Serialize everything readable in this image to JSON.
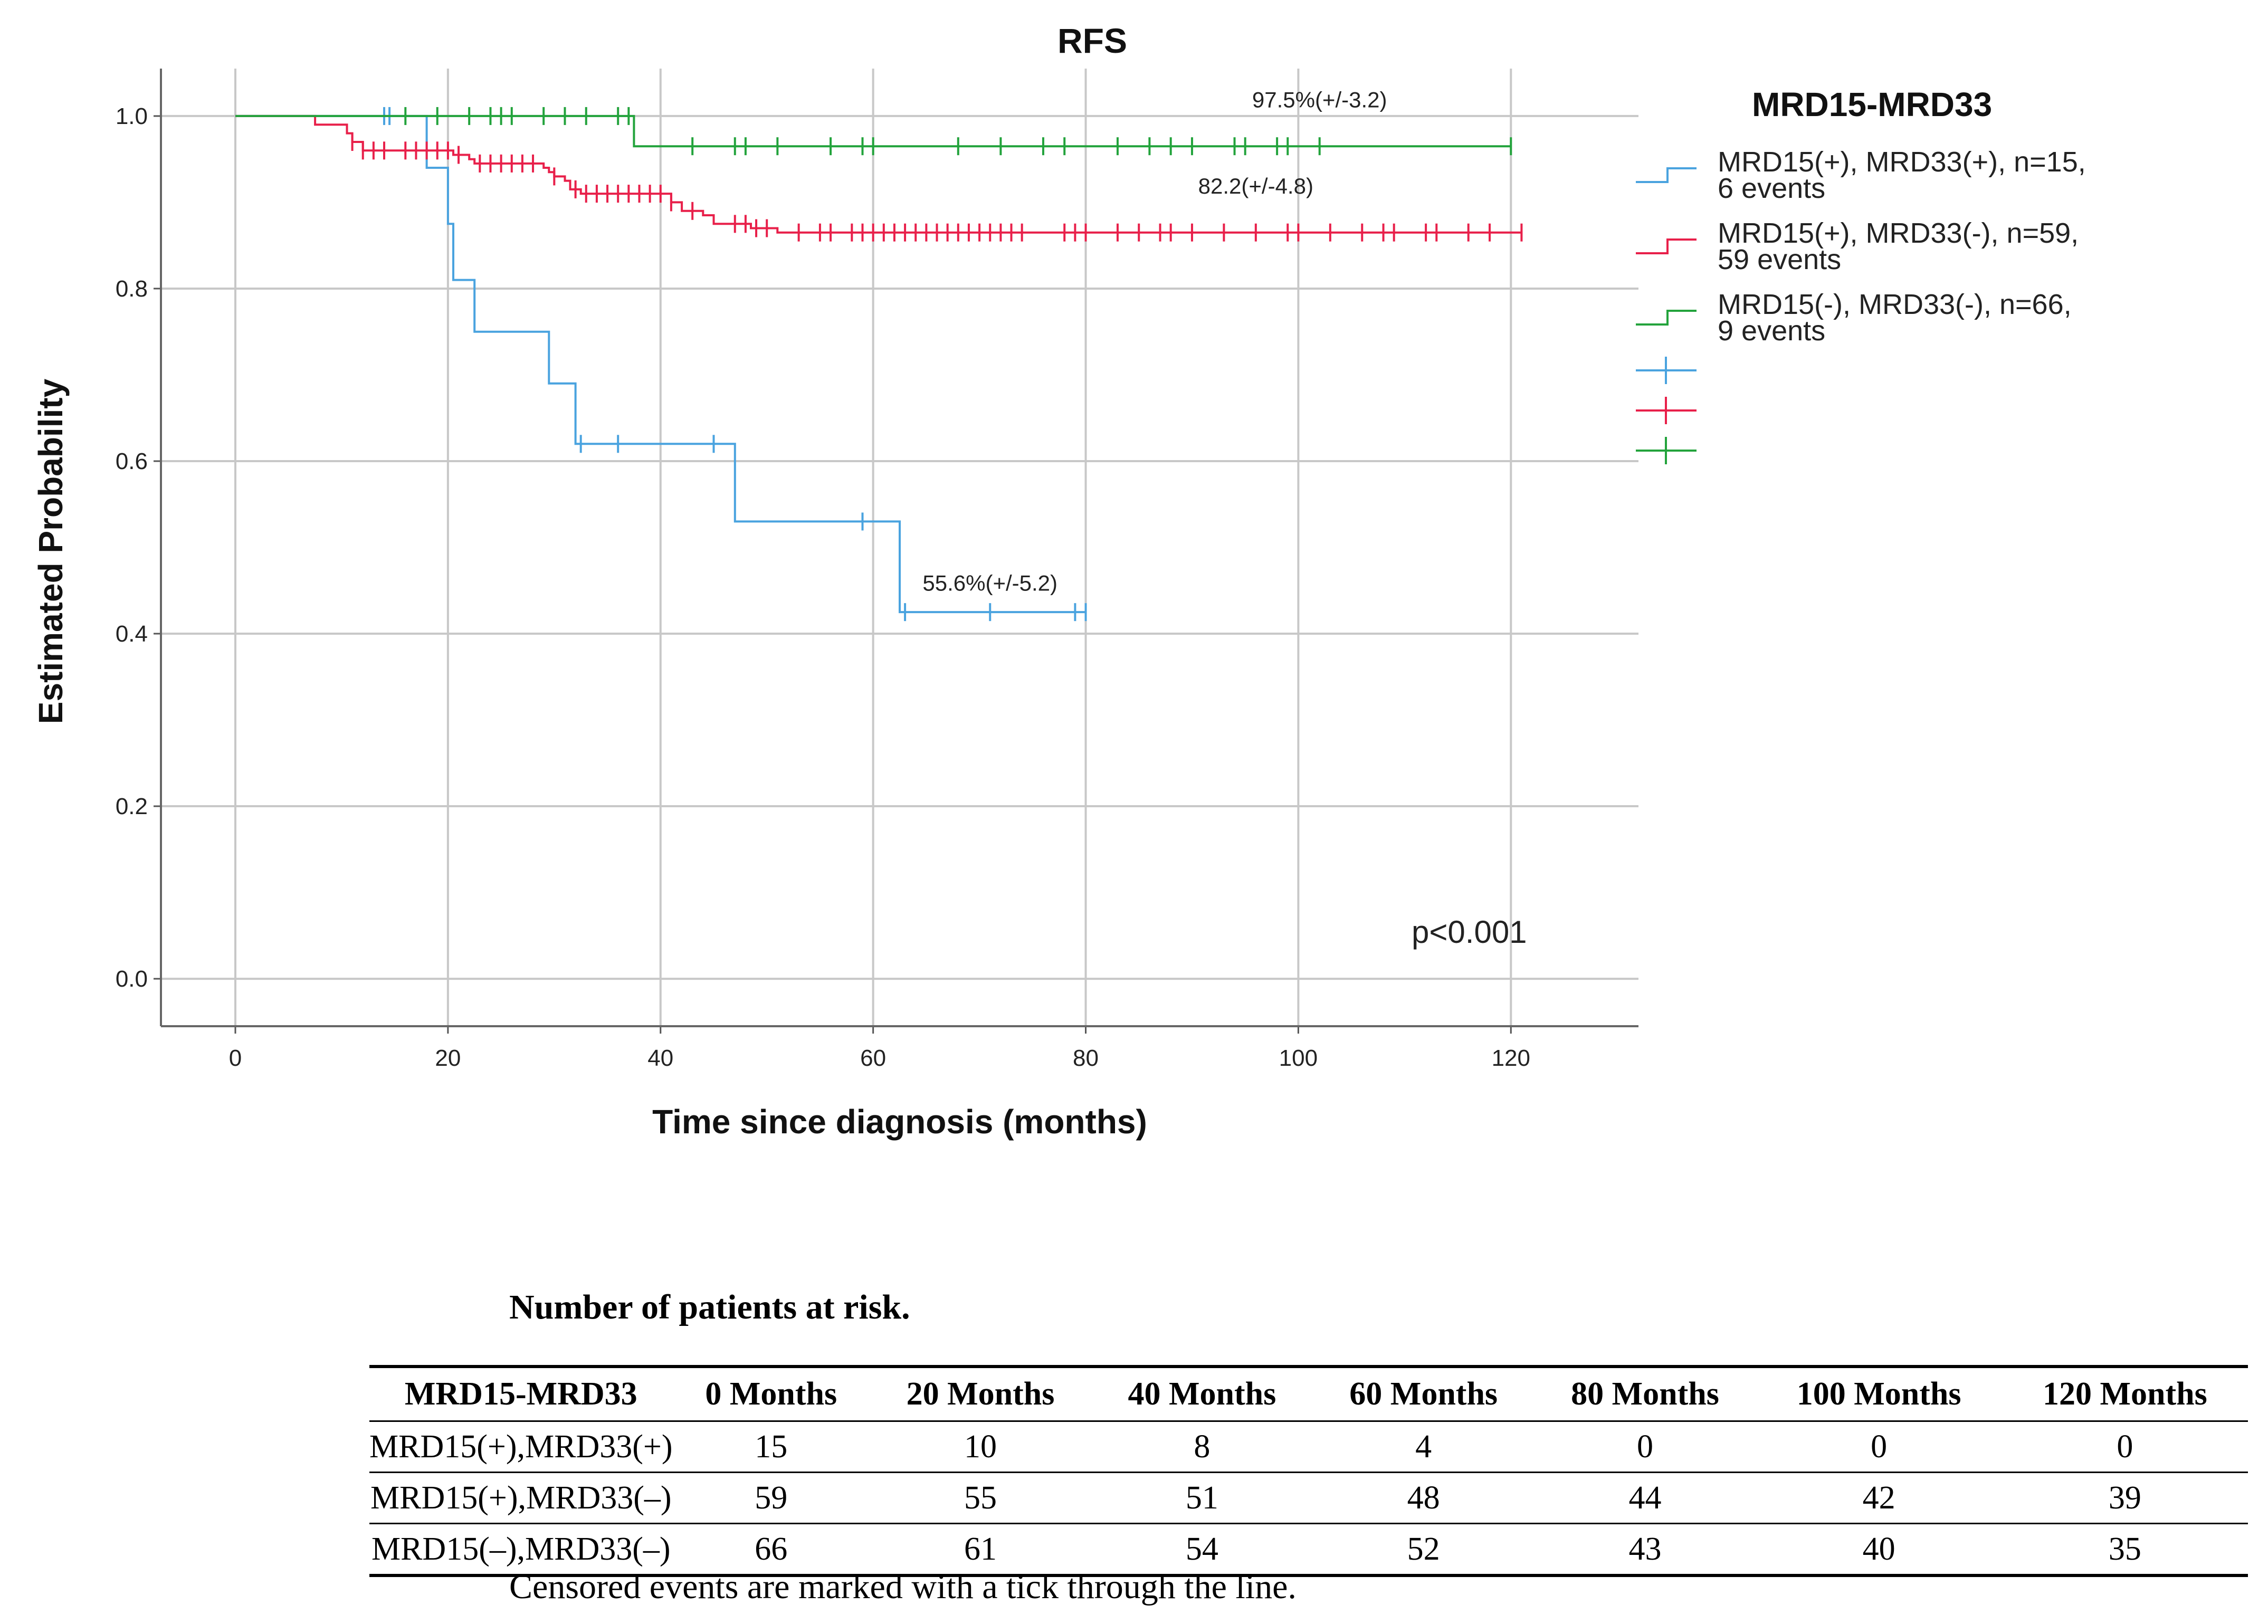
{
  "chart_data": {
    "type": "kaplan-meier (step line)",
    "title": "RFS",
    "xlabel": "Time since diagnosis (months)",
    "ylabel": "Estimated Probability",
    "xlim": [
      -7,
      132
    ],
    "ylim": [
      -0.055,
      1.055
    ],
    "xticks": [
      "0",
      "20",
      "40",
      "60",
      "80",
      "100",
      "120"
    ],
    "yticks": [
      "0.0",
      "0.2",
      "0.4",
      "0.6",
      "0.8",
      "1.0"
    ],
    "grid": true,
    "legend_title": "MRD15-MRD33",
    "legend_position": "right",
    "p_value_label": "p<0.001",
    "series": [
      {
        "name": "MRD15(+), MRD33(+), n=15, 6 events",
        "legend_line1": "MRD15(+), MRD33(+), n=15,",
        "legend_line2": "6 events",
        "color": "#4aa3df",
        "steps": [
          [
            0,
            1.0
          ],
          [
            18,
            1.0
          ],
          [
            18,
            0.94
          ],
          [
            20,
            0.94
          ],
          [
            20,
            0.875
          ],
          [
            20.5,
            0.875
          ],
          [
            20.5,
            0.81
          ],
          [
            22.5,
            0.81
          ],
          [
            22.5,
            0.75
          ],
          [
            29.5,
            0.75
          ],
          [
            29.5,
            0.69
          ],
          [
            32,
            0.69
          ],
          [
            32,
            0.62
          ],
          [
            47,
            0.62
          ],
          [
            47,
            0.53
          ],
          [
            62.5,
            0.53
          ],
          [
            62.5,
            0.425
          ],
          [
            80,
            0.425
          ]
        ],
        "censor_times": [
          14,
          14.5,
          32.5,
          36,
          45,
          59,
          63,
          71,
          79,
          80
        ],
        "annotation": "55.6%(+/-5.2)",
        "annotation_at": [
          71,
          0.45
        ]
      },
      {
        "name": "MRD15(+), MRD33(-), n=59, 59 events",
        "legend_line1": "MRD15(+), MRD33(-), n=59,",
        "legend_line2": "59 events",
        "color": "#e8204a",
        "steps": [
          [
            0,
            1.0
          ],
          [
            7.5,
            1.0
          ],
          [
            7.5,
            0.99
          ],
          [
            10.5,
            0.99
          ],
          [
            10.5,
            0.98
          ],
          [
            11,
            0.98
          ],
          [
            11,
            0.97
          ],
          [
            12,
            0.97
          ],
          [
            12,
            0.96
          ],
          [
            20.5,
            0.96
          ],
          [
            20.5,
            0.955
          ],
          [
            22,
            0.955
          ],
          [
            22,
            0.95
          ],
          [
            22.5,
            0.95
          ],
          [
            22.5,
            0.945
          ],
          [
            29,
            0.945
          ],
          [
            29,
            0.94
          ],
          [
            29.5,
            0.94
          ],
          [
            29.5,
            0.935
          ],
          [
            30,
            0.935
          ],
          [
            30,
            0.93
          ],
          [
            31,
            0.93
          ],
          [
            31,
            0.925
          ],
          [
            31.5,
            0.925
          ],
          [
            31.5,
            0.915
          ],
          [
            32.5,
            0.915
          ],
          [
            32.5,
            0.91
          ],
          [
            41,
            0.91
          ],
          [
            41,
            0.9
          ],
          [
            42,
            0.9
          ],
          [
            42,
            0.89
          ],
          [
            44,
            0.89
          ],
          [
            44,
            0.885
          ],
          [
            45,
            0.885
          ],
          [
            45,
            0.875
          ],
          [
            48.5,
            0.875
          ],
          [
            48.5,
            0.87
          ],
          [
            51,
            0.87
          ],
          [
            51,
            0.865
          ],
          [
            121,
            0.865
          ]
        ],
        "censor_times": [
          11,
          12,
          13,
          14,
          16,
          17,
          18,
          19,
          20,
          21,
          23,
          24,
          25,
          26,
          27,
          28,
          30,
          32,
          33,
          34,
          35,
          36,
          37,
          38,
          39,
          40,
          41,
          43,
          47,
          48,
          49,
          50,
          53,
          55,
          56,
          58,
          59,
          60,
          61,
          62,
          63,
          64,
          65,
          66,
          67,
          68,
          69,
          70,
          71,
          72,
          73,
          74,
          78,
          79,
          80,
          83,
          85,
          87,
          88,
          90,
          93,
          96,
          99,
          100,
          103,
          106,
          108,
          109,
          112,
          113,
          116,
          118,
          121
        ],
        "annotation": "82.2(+/-4.8)",
        "annotation_at": [
          96,
          0.91
        ]
      },
      {
        "name": "MRD15(-), MRD33(-), n=66, 9 events",
        "legend_line1": "MRD15(-), MRD33(-), n=66,",
        "legend_line2": "9 events",
        "color": "#23a33c",
        "steps": [
          [
            0,
            1.0
          ],
          [
            37.5,
            1.0
          ],
          [
            37.5,
            0.965
          ],
          [
            120,
            0.965
          ]
        ],
        "censor_times": [
          16,
          19,
          22,
          24,
          25,
          26,
          29,
          31,
          33,
          36,
          37,
          43,
          47,
          48,
          51,
          56,
          59,
          60,
          68,
          72,
          76,
          78,
          83,
          86,
          88,
          90,
          94,
          95,
          98,
          99,
          102,
          120
        ],
        "annotation": "97.5%(+/-3.2)",
        "annotation_at": [
          102,
          1.01
        ]
      }
    ]
  },
  "risk_table": {
    "title": "Number of patients at risk.",
    "headers": [
      "MRD15-MRD33",
      "0 Months",
      "20 Months",
      "40 Months",
      "60 Months",
      "80 Months",
      "100 Months",
      "120 Months"
    ],
    "rows": [
      {
        "group": "MRD15(+),MRD33(+)",
        "values": [
          "15",
          "10",
          "8",
          "4",
          "0",
          "0",
          "0"
        ]
      },
      {
        "group": "MRD15(+),MRD33(–)",
        "values": [
          "59",
          "55",
          "51",
          "48",
          "44",
          "42",
          "39"
        ]
      },
      {
        "group": "MRD15(–),MRD33(–)",
        "values": [
          "66",
          "61",
          "54",
          "52",
          "43",
          "40",
          "35"
        ]
      }
    ],
    "note": "Censored events are marked with a tick through the line."
  }
}
